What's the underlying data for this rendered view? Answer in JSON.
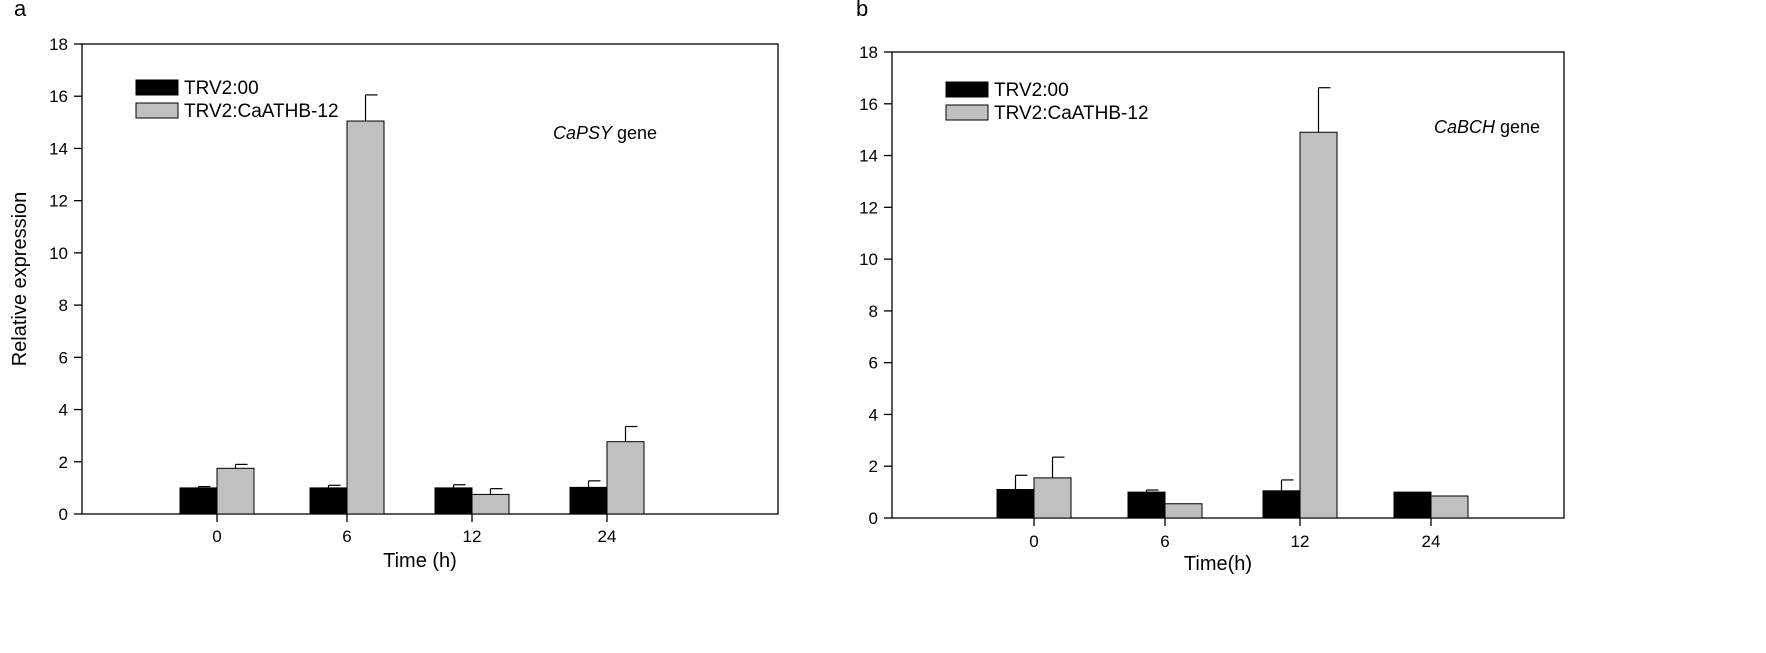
{
  "chart_data": [
    {
      "type": "bar",
      "panel_label": "a",
      "annotation": {
        "gene": "CaPSY",
        "suffix": " gene"
      },
      "xlabel": "Time (h)",
      "ylabel": "Relative expression",
      "categories": [
        "0",
        "6",
        "12",
        "24"
      ],
      "ylim": [
        0,
        18
      ],
      "yticks": [
        0,
        2,
        4,
        6,
        8,
        10,
        12,
        14,
        16,
        18
      ],
      "legend_position": "top-left",
      "series": [
        {
          "name": "TRV2:00",
          "color": "#000000",
          "values": [
            1.0,
            1.0,
            1.0,
            1.02
          ],
          "errors": [
            0.05,
            0.1,
            0.12,
            0.25
          ]
        },
        {
          "name": "TRV2:CaATHB-12",
          "color": "#c0c0c0",
          "values": [
            1.75,
            15.05,
            0.75,
            2.77
          ],
          "errors": [
            0.15,
            1.0,
            0.22,
            0.58
          ]
        }
      ]
    },
    {
      "type": "bar",
      "panel_label": "b",
      "annotation": {
        "gene": "CaBCH",
        "suffix": " gene"
      },
      "xlabel": "Time(h)",
      "ylabel": "",
      "categories": [
        "0",
        "6",
        "12",
        "24"
      ],
      "ylim": [
        0,
        18
      ],
      "yticks": [
        0,
        2,
        4,
        6,
        8,
        10,
        12,
        14,
        16,
        18
      ],
      "legend_position": "top-left",
      "series": [
        {
          "name": "TRV2:00",
          "color": "#000000",
          "values": [
            1.1,
            1.0,
            1.05,
            1.0
          ],
          "errors": [
            0.55,
            0.08,
            0.42,
            0.0
          ]
        },
        {
          "name": "TRV2:CaATHB-12",
          "color": "#c0c0c0",
          "values": [
            1.55,
            0.55,
            14.9,
            0.85
          ],
          "errors": [
            0.8,
            0.0,
            1.72,
            0.0
          ]
        }
      ]
    }
  ]
}
